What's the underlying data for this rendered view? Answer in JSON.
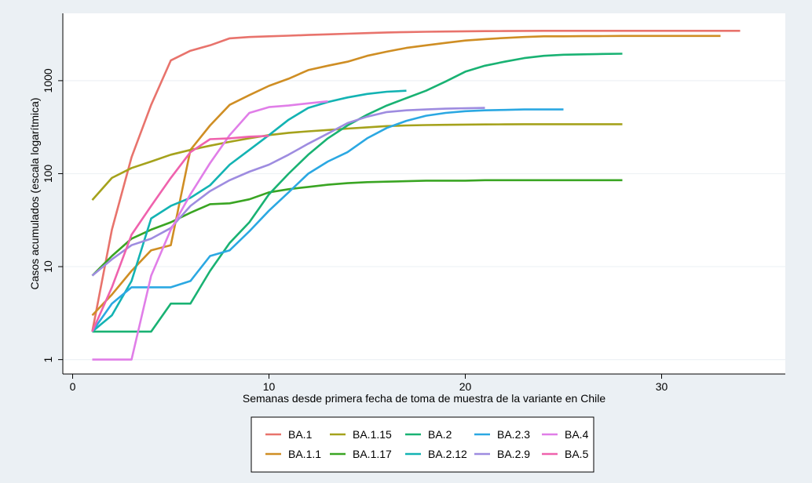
{
  "chart_data": {
    "type": "line",
    "title": "",
    "xlabel": "Semanas desde primera fecha de toma de muestra de la variante en Chile",
    "ylabel": "Casos acumulados (escala logarítmica)",
    "xlim": [
      -0.5,
      36.3
    ],
    "ylim": [
      0.7,
      5300
    ],
    "y_scale": "log",
    "grid": true,
    "legend_position": "bottom",
    "x_ticks": [
      0,
      10,
      20,
      30
    ],
    "y_ticks": [
      1,
      10,
      100,
      1000
    ],
    "x_tick_labels": [
      "0",
      "10",
      "20",
      "30"
    ],
    "y_tick_labels": [
      "1",
      "10",
      "100",
      "1000"
    ],
    "series": [
      {
        "name": "BA.1",
        "color": "#e8736c",
        "x": [
          1,
          2,
          3,
          4,
          5,
          6,
          7,
          8,
          9,
          10,
          11,
          12,
          13,
          14,
          15,
          16,
          17,
          18,
          19,
          20,
          21,
          22,
          23,
          24,
          25,
          26,
          27,
          28,
          29,
          30,
          31,
          32,
          33,
          34
        ],
        "y": [
          2,
          25,
          150,
          550,
          1650,
          2100,
          2400,
          2850,
          2950,
          3000,
          3050,
          3100,
          3150,
          3200,
          3250,
          3300,
          3330,
          3360,
          3380,
          3400,
          3410,
          3420,
          3430,
          3440,
          3440,
          3440,
          3440,
          3440,
          3440,
          3440,
          3440,
          3440,
          3440,
          3440
        ]
      },
      {
        "name": "BA.1.1",
        "color": "#cf8e24",
        "x": [
          1,
          2,
          3,
          4,
          5,
          6,
          7,
          8,
          9,
          10,
          11,
          12,
          13,
          14,
          15,
          16,
          17,
          18,
          19,
          20,
          21,
          22,
          23,
          24,
          25,
          26,
          27,
          28,
          29,
          30,
          31,
          32,
          33
        ],
        "y": [
          3,
          5,
          9,
          15,
          17,
          180,
          330,
          550,
          700,
          880,
          1050,
          1300,
          1450,
          1600,
          1850,
          2050,
          2250,
          2400,
          2550,
          2700,
          2800,
          2880,
          2950,
          3000,
          3000,
          3010,
          3020,
          3030,
          3030,
          3030,
          3030,
          3030,
          3030
        ]
      },
      {
        "name": "BA.1.15",
        "color": "#a5a21c",
        "x": [
          1,
          2,
          3,
          4,
          5,
          6,
          7,
          8,
          9,
          10,
          11,
          12,
          13,
          14,
          15,
          16,
          17,
          18,
          19,
          20,
          21,
          22,
          23,
          24,
          25,
          26,
          27,
          28
        ],
        "y": [
          52,
          90,
          115,
          135,
          160,
          180,
          200,
          220,
          240,
          260,
          275,
          285,
          295,
          305,
          315,
          325,
          330,
          333,
          335,
          337,
          338,
          339,
          340,
          340,
          340,
          340,
          340,
          340
        ]
      },
      {
        "name": "BA.1.17",
        "color": "#3aa523",
        "x": [
          1,
          2,
          3,
          4,
          5,
          6,
          7,
          8,
          9,
          10,
          11,
          12,
          13,
          14,
          15,
          16,
          17,
          18,
          19,
          20,
          21,
          22,
          23,
          24,
          25,
          26,
          27,
          28
        ],
        "y": [
          8,
          13,
          20,
          25,
          30,
          38,
          47,
          48,
          53,
          63,
          68,
          72,
          76,
          79,
          81,
          82,
          83,
          84,
          84,
          84,
          85,
          85,
          85,
          85,
          85,
          85,
          85,
          85
        ]
      },
      {
        "name": "BA.2",
        "color": "#19b273",
        "x": [
          1,
          2,
          3,
          4,
          5,
          6,
          7,
          8,
          9,
          10,
          11,
          12,
          13,
          14,
          15,
          16,
          17,
          18,
          19,
          20,
          21,
          22,
          23,
          24,
          25,
          26,
          27,
          28
        ],
        "y": [
          2,
          2,
          2,
          2,
          4,
          4,
          9,
          18,
          30,
          60,
          100,
          160,
          240,
          330,
          430,
          540,
          650,
          780,
          980,
          1250,
          1450,
          1600,
          1750,
          1850,
          1900,
          1920,
          1940,
          1950
        ]
      },
      {
        "name": "BA.2.12",
        "color": "#13b3b3",
        "x": [
          1,
          2,
          3,
          4,
          5,
          6,
          7,
          8,
          9,
          10,
          11,
          12,
          13,
          14,
          15,
          16,
          17
        ],
        "y": [
          2,
          3,
          7,
          33,
          45,
          55,
          75,
          125,
          180,
          260,
          380,
          510,
          590,
          660,
          720,
          760,
          780
        ]
      },
      {
        "name": "BA.2.3",
        "color": "#2ba8e2",
        "x": [
          1,
          2,
          3,
          4,
          5,
          6,
          7,
          8,
          9,
          10,
          11,
          12,
          13,
          14,
          15,
          16,
          17,
          18,
          19,
          20,
          21,
          22,
          23,
          24,
          25
        ],
        "y": [
          2,
          4,
          6,
          6,
          6,
          7,
          13,
          15,
          24,
          40,
          63,
          100,
          135,
          170,
          240,
          310,
          370,
          420,
          450,
          470,
          480,
          485,
          490,
          490,
          490
        ]
      },
      {
        "name": "BA.2.9",
        "color": "#9e8ce0",
        "x": [
          1,
          2,
          3,
          4,
          5,
          6,
          7,
          8,
          9,
          10,
          11,
          12,
          13,
          14,
          15,
          16,
          17,
          18,
          19,
          20,
          21
        ],
        "y": [
          8,
          12,
          17,
          20,
          26,
          45,
          65,
          85,
          105,
          125,
          160,
          210,
          270,
          350,
          410,
          460,
          480,
          490,
          500,
          505,
          510
        ]
      },
      {
        "name": "BA.4",
        "color": "#e07ee8",
        "x": [
          1,
          2,
          3,
          4,
          5,
          6,
          7,
          8,
          9,
          10,
          11,
          12,
          13
        ],
        "y": [
          1,
          1,
          1,
          8,
          25,
          60,
          130,
          260,
          450,
          520,
          540,
          570,
          600
        ]
      },
      {
        "name": "BA.5",
        "color": "#ef62ad",
        "x": [
          1,
          2,
          3,
          4,
          5,
          6,
          7,
          8,
          9,
          10
        ],
        "y": [
          2,
          6,
          22,
          45,
          90,
          170,
          235,
          240,
          250,
          255
        ]
      }
    ]
  }
}
